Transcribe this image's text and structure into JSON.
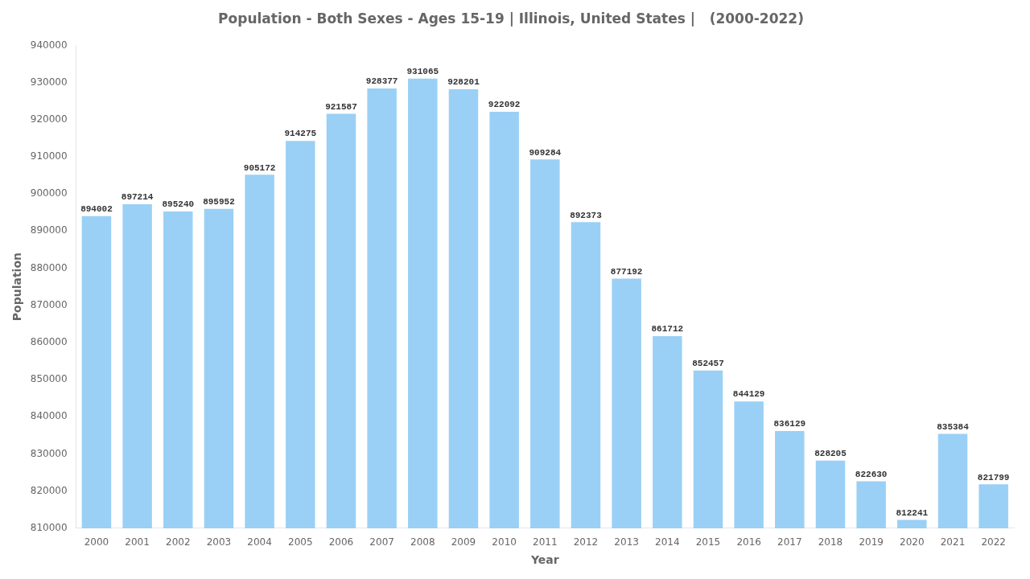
{
  "chart_data": {
    "type": "bar",
    "title": "Population - Both Sexes - Ages 15-19 | Illinois, United States |   (2000-2022)",
    "xlabel": "Year",
    "ylabel": "Population",
    "categories": [
      "2000",
      "2001",
      "2002",
      "2003",
      "2004",
      "2005",
      "2006",
      "2007",
      "2008",
      "2009",
      "2010",
      "2011",
      "2012",
      "2013",
      "2014",
      "2015",
      "2016",
      "2017",
      "2018",
      "2019",
      "2020",
      "2021",
      "2022"
    ],
    "values": [
      894002,
      897214,
      895240,
      895952,
      905172,
      914275,
      921587,
      928377,
      931065,
      928201,
      922092,
      909284,
      892373,
      877192,
      861712,
      852457,
      844129,
      836129,
      828205,
      822630,
      812241,
      835384,
      821799
    ],
    "ylim": [
      810000,
      940000
    ],
    "yticks": [
      810000,
      820000,
      830000,
      840000,
      850000,
      860000,
      870000,
      880000,
      890000,
      900000,
      910000,
      920000,
      930000,
      940000
    ],
    "grid": false,
    "data_labels": true
  }
}
